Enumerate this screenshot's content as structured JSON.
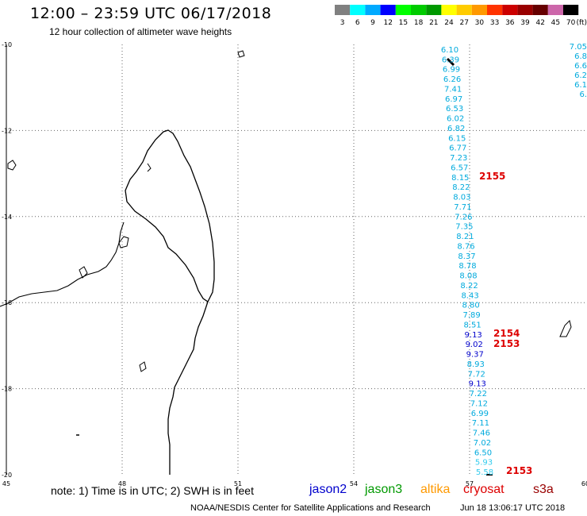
{
  "header": {
    "title": "12:00 – 23:59 UTC 06/17/2018",
    "subtitle": "12 hour collection of altimeter wave heights"
  },
  "legend": {
    "unit": "(ft)",
    "steps": [
      {
        "label": "3",
        "color": "#808080"
      },
      {
        "label": "6",
        "color": "#00ffff"
      },
      {
        "label": "9",
        "color": "#00aaff"
      },
      {
        "label": "12",
        "color": "#0000ff"
      },
      {
        "label": "15",
        "color": "#00ff00"
      },
      {
        "label": "18",
        "color": "#00cc00"
      },
      {
        "label": "21",
        "color": "#009900"
      },
      {
        "label": "24",
        "color": "#ffff00"
      },
      {
        "label": "27",
        "color": "#ffcc00"
      },
      {
        "label": "30",
        "color": "#ff9900"
      },
      {
        "label": "33",
        "color": "#ff3300"
      },
      {
        "label": "36",
        "color": "#cc0000"
      },
      {
        "label": "39",
        "color": "#990000"
      },
      {
        "label": "42",
        "color": "#660000"
      },
      {
        "label": "45",
        "color": "#cc66aa"
      },
      {
        "label": "70",
        "color": "#000000"
      }
    ]
  },
  "axes": {
    "lon": {
      "ticks": [
        "45",
        "48",
        "51",
        "54",
        "57",
        "60"
      ],
      "range": [
        45,
        60
      ]
    },
    "lat": {
      "ticks": [
        "-10",
        "-12",
        "-14",
        "-16",
        "-18",
        "-20"
      ],
      "range": [
        -20,
        -10
      ]
    }
  },
  "track_main": {
    "color_light": "#00aadd",
    "color_dark": "#0000cc",
    "color_pale": "#33ccee",
    "points": [
      {
        "lat": -10.1,
        "lon": 56.4,
        "v": "6.10"
      },
      {
        "lat": -10.35,
        "lon": 56.45,
        "v": "6.39"
      },
      {
        "lat": -10.6,
        "lon": 56.5,
        "v": "6.99"
      },
      {
        "lat": -10.85,
        "lon": 56.55,
        "v": "6.26"
      },
      {
        "lat": -11.1,
        "lon": 56.6,
        "v": "7.41"
      },
      {
        "lat": -11.35,
        "lon": 56.6,
        "v": "6.97"
      },
      {
        "lat": -11.6,
        "lon": 56.55,
        "v": "6.53"
      },
      {
        "lat": -11.85,
        "lon": 56.55,
        "v": "6.02"
      },
      {
        "lat": -12.1,
        "lon": 56.55,
        "v": "6.82"
      },
      {
        "lat": -12.35,
        "lon": 56.55,
        "v": "6.15"
      },
      {
        "lat": -12.6,
        "lon": 56.55,
        "v": "6.77"
      },
      {
        "lat": -12.85,
        "lon": 56.6,
        "v": "7.23"
      },
      {
        "lat": -13.1,
        "lon": 56.6,
        "v": "6.57"
      },
      {
        "lat": -13.35,
        "lon": 56.6,
        "v": "8.15"
      },
      {
        "lat": -13.6,
        "lon": 56.65,
        "v": "8.22"
      },
      {
        "lat": -13.85,
        "lon": 56.65,
        "v": "8.03"
      },
      {
        "lat": -14.1,
        "lon": 56.65,
        "v": "7.71"
      },
      {
        "lat": -14.35,
        "lon": 56.7,
        "v": "7.26"
      },
      {
        "lat": -14.6,
        "lon": 56.7,
        "v": "7.35"
      },
      {
        "lat": -14.85,
        "lon": 56.75,
        "v": "8.21"
      },
      {
        "lat": -15.1,
        "lon": 56.75,
        "v": "8.76"
      },
      {
        "lat": -15.35,
        "lon": 56.8,
        "v": "8.37"
      },
      {
        "lat": -15.6,
        "lon": 56.8,
        "v": "8.78"
      },
      {
        "lat": -15.85,
        "lon": 56.8,
        "v": "8.08"
      },
      {
        "lat": -16.1,
        "lon": 56.85,
        "v": "8.22"
      },
      {
        "lat": -16.35,
        "lon": 56.85,
        "v": "8.43"
      },
      {
        "lat": -16.6,
        "lon": 56.85,
        "v": "8.80"
      },
      {
        "lat": -16.85,
        "lon": 56.9,
        "v": "7.89"
      },
      {
        "lat": -17.1,
        "lon": 56.9,
        "v": "8.51"
      },
      {
        "lat": -17.35,
        "lon": 56.95,
        "v": "9.13",
        "dark": true
      },
      {
        "lat": -17.6,
        "lon": 56.95,
        "v": "9.02",
        "dark": true
      },
      {
        "lat": -17.8,
        "lon": 57.0,
        "v": "9.37",
        "dark": true
      },
      {
        "lat": -18.05,
        "lon": 57.0,
        "v": "8.93"
      },
      {
        "lat": -18.3,
        "lon": 57.0,
        "v": "7.72"
      },
      {
        "lat": -18.55,
        "lon": 57.05,
        "v": "9.13",
        "dark": true
      },
      {
        "lat": -18.8,
        "lon": 57.05,
        "v": "7.22"
      },
      {
        "lat": -19.05,
        "lon": 57.1,
        "v": "7.12"
      },
      {
        "lat": -19.3,
        "lon": 57.1,
        "v": "6.99"
      },
      {
        "lat": -19.55,
        "lon": 57.15,
        "v": "7.11"
      },
      {
        "lat": -19.8,
        "lon": 57.15,
        "v": "7.46"
      },
      {
        "lat": -20.05,
        "lon": 57.2,
        "v": "7.02"
      },
      {
        "lat": -20.3,
        "lon": 57.2,
        "v": "6.50"
      },
      {
        "lat": -20.6,
        "lon": 57.25,
        "v": "5.93",
        "pale": true
      },
      {
        "lat": -20.85,
        "lon": 57.25,
        "v": "5.58",
        "pale": true
      }
    ]
  },
  "track_edge": {
    "color": "#00aadd",
    "points": [
      {
        "lat": -10.05,
        "lon": 59.95,
        "v": "7.05"
      },
      {
        "lat": -10.3,
        "lon": 60.0,
        "v": "6.8"
      },
      {
        "lat": -10.55,
        "lon": 60.05,
        "v": "6.6"
      },
      {
        "lat": -10.8,
        "lon": 60.05,
        "v": "6.2"
      },
      {
        "lat": -11.05,
        "lon": 60.1,
        "v": "6.1"
      },
      {
        "lat": -11.3,
        "lon": 60.1,
        "v": "6."
      }
    ]
  },
  "times": [
    {
      "lat": -13.3,
      "lon": 57.3,
      "v": "2155"
    },
    {
      "lat": -17.3,
      "lon": 57.7,
      "v": "2154"
    },
    {
      "lat": -17.55,
      "lon": 57.7,
      "v": "2153"
    },
    {
      "lat": -19.9,
      "lon": 57.8,
      "v": "2153"
    }
  ],
  "time_color": "#dd0000",
  "note": "note:  1) Time is in UTC;  2) SWH is in feet",
  "satellites": [
    {
      "name": "jason2",
      "color": "#0000cc"
    },
    {
      "name": "jason3",
      "color": "#009900"
    },
    {
      "name": "altika",
      "color": "#ff9900"
    },
    {
      "name": "cryosat",
      "color": "#dd0000"
    },
    {
      "name": "s3a",
      "color": "#990000"
    }
  ],
  "footer": "NOAA/NESDIS Center for Satellite Applications and Research",
  "timestamp": "Jun 18 13:06:17 UTC 2018"
}
